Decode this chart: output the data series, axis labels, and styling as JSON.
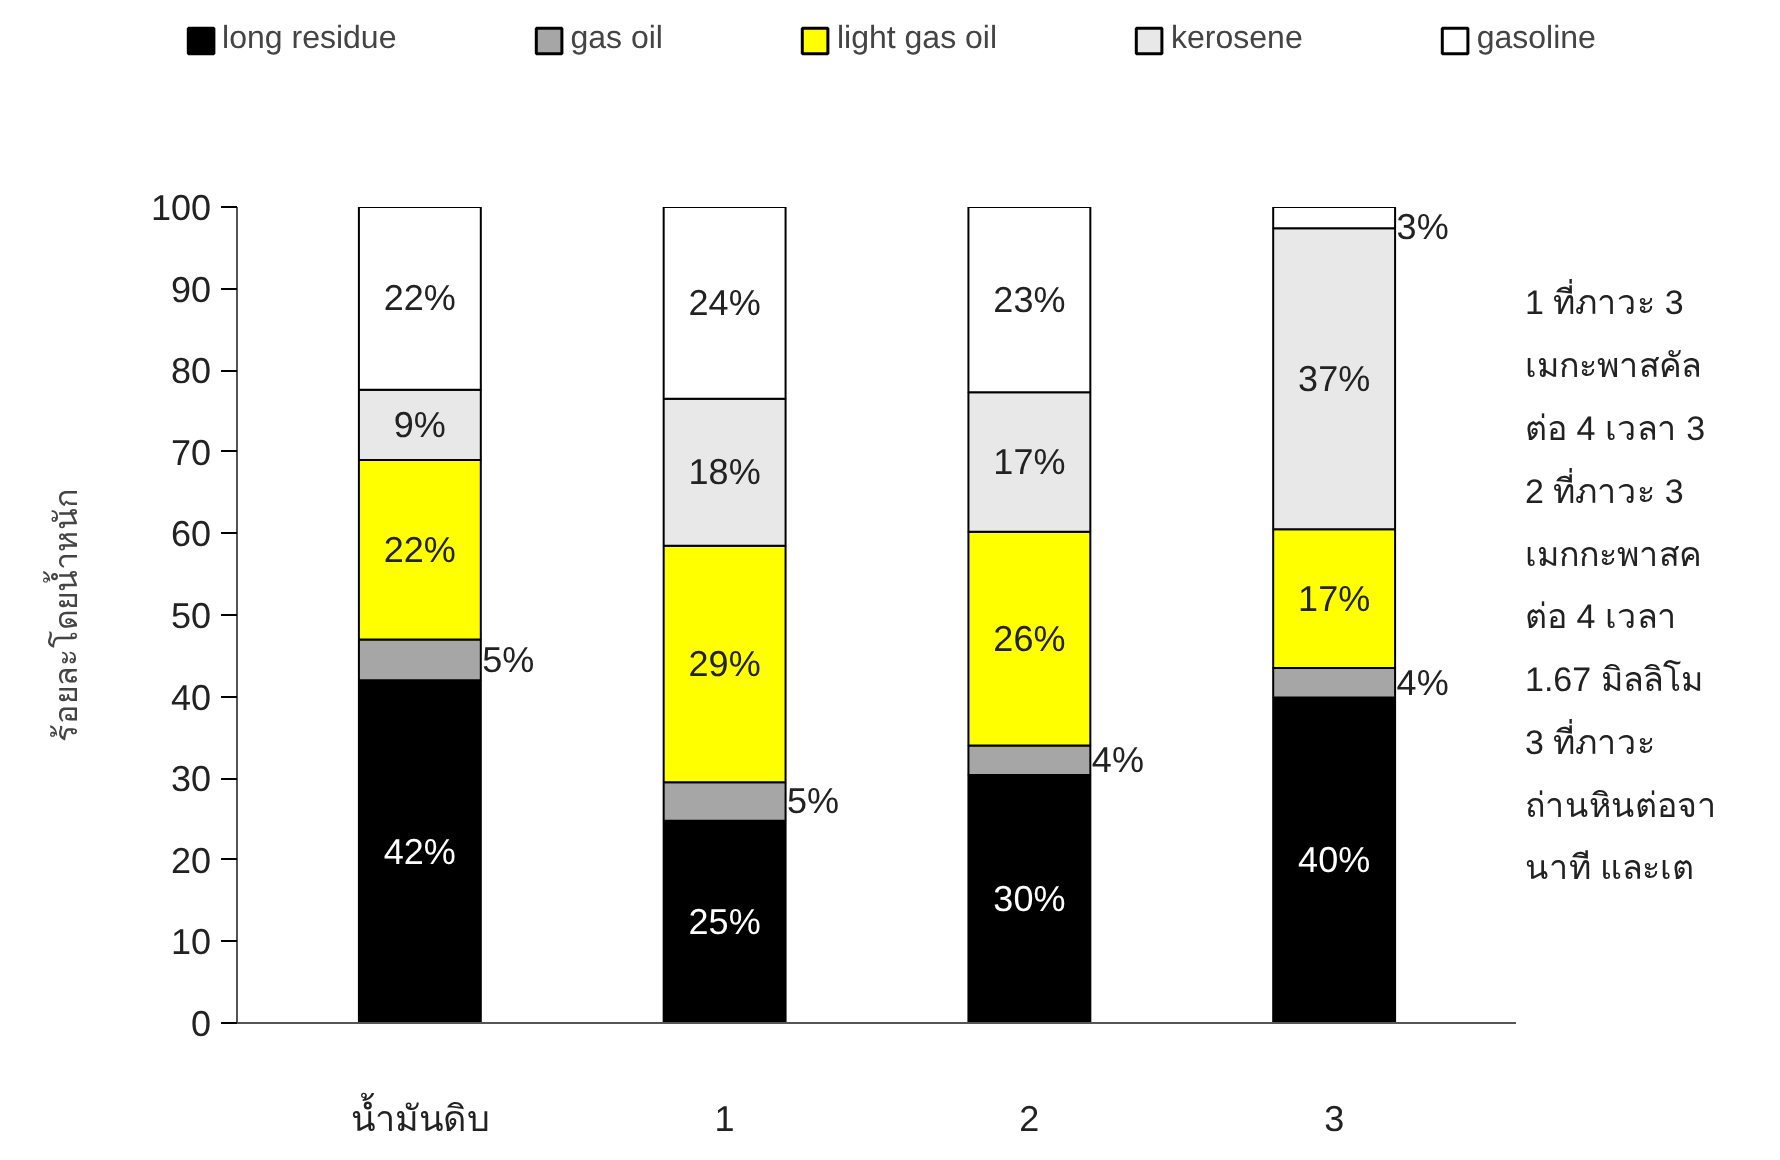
{
  "chart_data": {
    "type": "bar",
    "stacked": true,
    "ylabel": "ร้อยละโดยน้ำหนัก",
    "categories": [
      "น้ำมันดิบ",
      "1",
      "2",
      "3"
    ],
    "series": [
      {
        "name": "long residue",
        "color": "#000000",
        "values": [
          42,
          24.8,
          30.4,
          39.9
        ],
        "value_labels": [
          "42%",
          "25%",
          "30%",
          "40%"
        ]
      },
      {
        "name": "gas oil",
        "color": "#a6a6a6",
        "values": [
          5,
          4.7,
          3.6,
          3.6
        ],
        "value_labels": [
          "5%",
          "5%",
          "4%",
          "4%"
        ]
      },
      {
        "name": "light gas oil",
        "color": "#ffff00",
        "values": [
          22,
          29,
          26.2,
          17
        ],
        "value_labels": [
          "22%",
          "29%",
          "26%",
          "17%"
        ]
      },
      {
        "name": "kerosene",
        "color": "#e8e8e8",
        "values": [
          8.6,
          18,
          17.1,
          36.9
        ],
        "value_labels": [
          "9%",
          "18%",
          "17%",
          "37%"
        ]
      },
      {
        "name": "gasoline",
        "color": "#ffffff",
        "values": [
          22.4,
          23.5,
          22.7,
          2.6
        ],
        "value_labels": [
          "22%",
          "24%",
          "23%",
          "3%"
        ]
      }
    ],
    "ylim": [
      0,
      100
    ],
    "yticks": [
      0,
      10,
      20,
      30,
      40,
      50,
      60,
      70,
      80,
      90,
      100
    ],
    "grid": false,
    "legend": "top",
    "annotations": [
      "1  ที่ภาวะ 3",
      "เมกะพาสคัล",
      "ต่อ 4 เวลา 3",
      "2  ที่ภาวะ 3",
      "เมกกะพาสค",
      "ต่อ  4  เวลา",
      "1.67 มิลลิโม",
      "3     ที่ภาวะ",
      "ถ่านหินต่อจา",
      "นาที  และเต"
    ]
  }
}
